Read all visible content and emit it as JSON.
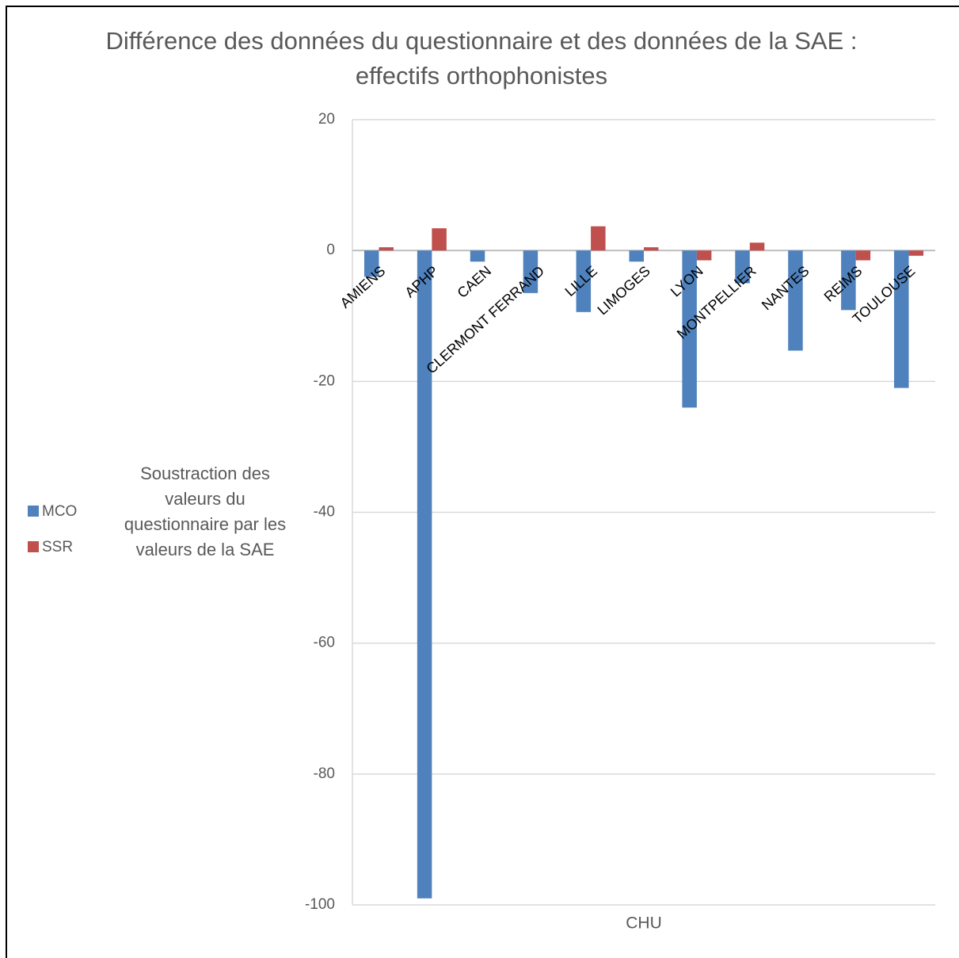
{
  "chart_data": {
    "type": "bar",
    "title": "Différence des données du questionnaire et des données de la SAE : effectifs orthophonistes",
    "y_label": "Soustraction des valeurs du questionnaire par les valeurs de la SAE",
    "x_label": "CHU",
    "categories": [
      "AMIENS",
      "APHP",
      "CAEN",
      "CLERMONT FERRAND",
      "LILLE",
      "LIMOGES",
      "LYON",
      "MONTPELLIER",
      "NANTES",
      "REIMS",
      "TOULOUSE"
    ],
    "series": [
      {
        "name": "MCO",
        "color": "#4f81bd",
        "values": [
          -4,
          -99,
          -1.7,
          -6.5,
          -9.4,
          -1.7,
          -24,
          -5,
          -15.3,
          -9.1,
          -21
        ]
      },
      {
        "name": "SSR",
        "color": "#c0504d",
        "values": [
          0.5,
          3.4,
          0,
          0,
          3.7,
          0.5,
          -1.5,
          1.2,
          0,
          -1.5,
          -0.8
        ]
      }
    ],
    "ylim": [
      -100,
      20
    ],
    "yticks": [
      -100,
      -80,
      -60,
      -40,
      -20,
      0,
      20
    ],
    "grid": true,
    "legend": "left"
  }
}
